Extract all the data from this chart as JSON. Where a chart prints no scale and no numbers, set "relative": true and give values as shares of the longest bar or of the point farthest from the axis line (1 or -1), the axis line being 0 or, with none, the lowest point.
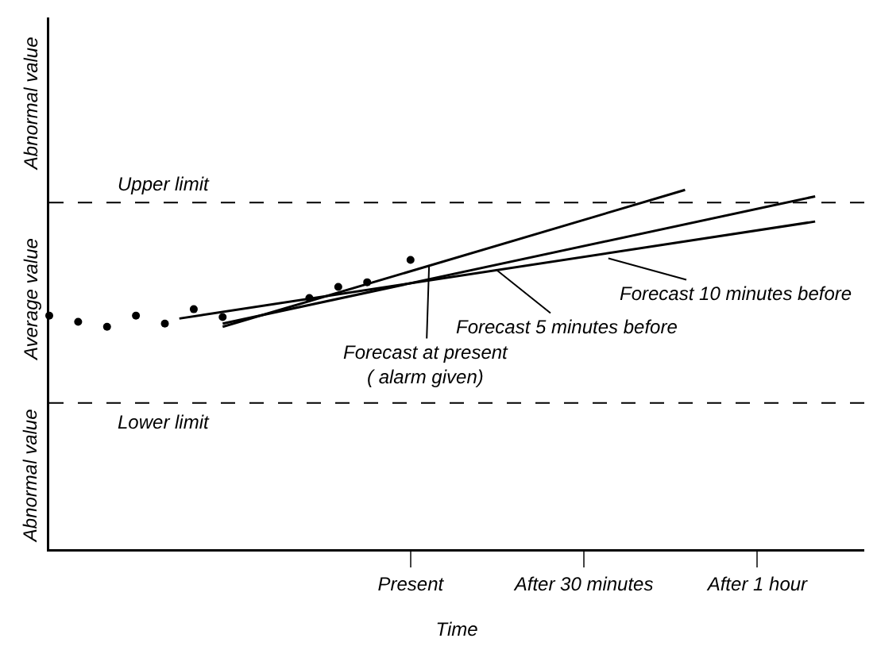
{
  "chart_data": {
    "type": "line",
    "relative": true,
    "xlabel": "Time",
    "categories": [
      null,
      null,
      null,
      null,
      null,
      null,
      null,
      null,
      null,
      null,
      null,
      null,
      null,
      null,
      null,
      null,
      null,
      null,
      null,
      null,
      null,
      null,
      null,
      null,
      null,
      "Present",
      null,
      null,
      null,
      null,
      null,
      null,
      null,
      null,
      null,
      null,
      null,
      "After 30 minutes",
      null,
      null,
      null,
      null,
      null,
      null,
      null,
      null,
      null,
      null,
      null,
      "After 1 hour",
      null,
      null,
      null,
      null,
      null,
      null,
      null
    ],
    "series": [
      {
        "type": "scatter",
        "color": "#000000",
        "marker": "circle",
        "values": [
          0.65,
          null,
          0.633,
          null,
          0.619,
          null,
          0.65,
          null,
          0.628,
          null,
          0.668,
          null,
          0.646,
          null,
          null,
          null,
          null,
          null,
          0.699,
          null,
          0.73,
          null,
          0.743,
          null,
          null,
          0.805,
          null,
          null,
          null,
          null,
          null,
          null,
          null,
          null,
          null,
          null,
          null,
          null,
          null,
          null,
          null,
          null,
          null,
          null,
          null,
          null,
          null,
          null,
          null,
          null,
          null,
          null,
          null,
          null,
          null,
          null,
          null
        ]
      },
      {
        "color": "#000000",
        "line_style": "solid",
        "values": [
          null,
          null,
          null,
          null,
          null,
          null,
          null,
          null,
          null,
          null,
          null,
          null,
          0.619,
          null,
          null,
          null,
          null,
          null,
          null,
          null,
          null,
          null,
          null,
          null,
          null,
          null,
          null,
          null,
          null,
          null,
          null,
          null,
          null,
          null,
          null,
          null,
          null,
          null,
          null,
          null,
          null,
          null,
          null,
          null,
          1.0,
          null,
          null,
          null,
          null,
          null,
          null,
          null,
          null,
          null,
          null,
          null,
          null
        ]
      },
      {
        "color": "#000000",
        "line_style": "solid",
        "values": [
          null,
          null,
          null,
          null,
          null,
          null,
          null,
          null,
          null,
          null,
          null,
          null,
          0.628,
          null,
          null,
          null,
          null,
          null,
          null,
          null,
          null,
          null,
          null,
          null,
          null,
          null,
          null,
          null,
          null,
          null,
          null,
          null,
          null,
          null,
          null,
          null,
          null,
          null,
          null,
          null,
          null,
          null,
          null,
          null,
          null,
          null,
          null,
          null,
          null,
          null,
          null,
          null,
          null,
          0.982,
          null,
          null,
          null
        ]
      },
      {
        "color": "#000000",
        "line_style": "solid",
        "values": [
          null,
          null,
          null,
          null,
          null,
          null,
          null,
          null,
          null,
          0.642,
          null,
          null,
          null,
          null,
          null,
          null,
          null,
          null,
          null,
          null,
          null,
          null,
          null,
          null,
          null,
          null,
          null,
          null,
          null,
          null,
          null,
          null,
          null,
          null,
          null,
          null,
          null,
          null,
          null,
          null,
          null,
          null,
          null,
          null,
          null,
          null,
          null,
          null,
          null,
          null,
          null,
          null,
          null,
          0.912,
          null,
          null,
          null
        ]
      }
    ],
    "ref_lines": [
      {
        "axis": "y",
        "value": 0.965,
        "label": "Upper limit",
        "line_style": "dashed",
        "color": "#000000"
      },
      {
        "axis": "y",
        "value": 0.407,
        "label": "Lower limit",
        "line_style": "dashed",
        "color": "#000000"
      }
    ],
    "annotations": [
      "Abnormal value",
      "Average value",
      "Abnormal value",
      "Forecast at present\n( alarm given)",
      "Forecast 5 minutes before",
      "Forecast 10 minutes before"
    ],
    "grid": false
  }
}
